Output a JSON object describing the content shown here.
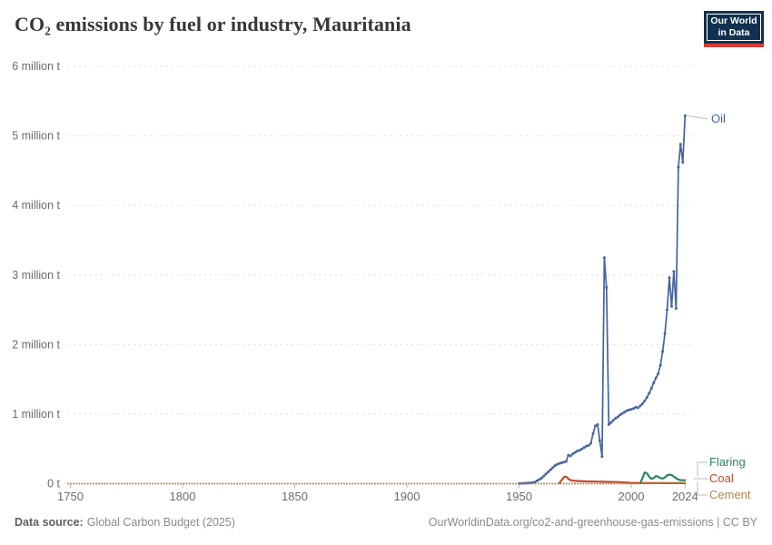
{
  "header": {
    "title": "CO₂ emissions by fuel or industry, Mauritania"
  },
  "logo": {
    "line1": "Our World",
    "line2": "in Data",
    "bg_color": "#12304F",
    "stripe_color": "#DB3A34"
  },
  "footer": {
    "source_label": "Data source:",
    "source_value": "Global Carbon Budget (2025)",
    "credit": "OurWorldinData.org/co2-and-greenhouse-gas-emissions | CC BY"
  },
  "chart_data": {
    "type": "line",
    "title": "CO₂ emissions by fuel or industry, Mauritania",
    "unit": "tonnes of CO₂",
    "xlim": [
      1749,
      2028
    ],
    "ylim": [
      0,
      6000000
    ],
    "grid": "horizontal-dashed",
    "legend_position": "right-edge-labels",
    "y_ticks": [
      {
        "value": 0,
        "label": "0 t"
      },
      {
        "value": 1,
        "label": "1 million t"
      },
      {
        "value": 2,
        "label": "2 million t"
      },
      {
        "value": 3,
        "label": "3 million t"
      },
      {
        "value": 4,
        "label": "4 million t"
      },
      {
        "value": 5,
        "label": "5 million t"
      },
      {
        "value": 6,
        "label": "6 million t"
      }
    ],
    "x_ticks": [
      {
        "value": 1750,
        "label": "1750"
      },
      {
        "value": 1800,
        "label": "1800"
      },
      {
        "value": 1850,
        "label": "1850"
      },
      {
        "value": 1900,
        "label": "1900"
      },
      {
        "value": 1950,
        "label": "1950"
      },
      {
        "value": 2000,
        "label": "2000"
      },
      {
        "value": 2024,
        "label": "2024"
      }
    ],
    "series": [
      {
        "name": "Oil",
        "color": "#44639E",
        "style": "solid",
        "markers": true,
        "points_unit": "million t",
        "points": [
          [
            1950,
            0.003
          ],
          [
            1951,
            0.004
          ],
          [
            1952,
            0.005
          ],
          [
            1953,
            0.007
          ],
          [
            1954,
            0.009
          ],
          [
            1955,
            0.012
          ],
          [
            1956,
            0.016
          ],
          [
            1957,
            0.022
          ],
          [
            1958,
            0.04
          ],
          [
            1959,
            0.06
          ],
          [
            1960,
            0.08
          ],
          [
            1961,
            0.11
          ],
          [
            1962,
            0.14
          ],
          [
            1963,
            0.17
          ],
          [
            1964,
            0.2
          ],
          [
            1965,
            0.23
          ],
          [
            1966,
            0.26
          ],
          [
            1967,
            0.28
          ],
          [
            1968,
            0.29
          ],
          [
            1969,
            0.3
          ],
          [
            1970,
            0.31
          ],
          [
            1971,
            0.32
          ],
          [
            1972,
            0.41
          ],
          [
            1973,
            0.4
          ],
          [
            1974,
            0.43
          ],
          [
            1975,
            0.45
          ],
          [
            1976,
            0.47
          ],
          [
            1977,
            0.48
          ],
          [
            1978,
            0.5
          ],
          [
            1979,
            0.52
          ],
          [
            1980,
            0.54
          ],
          [
            1981,
            0.55
          ],
          [
            1982,
            0.58
          ],
          [
            1983,
            0.72
          ],
          [
            1984,
            0.83
          ],
          [
            1985,
            0.85
          ],
          [
            1986,
            0.62
          ],
          [
            1987,
            0.39
          ],
          [
            1988,
            3.25
          ],
          [
            1989,
            2.82
          ],
          [
            1990,
            0.85
          ],
          [
            1991,
            0.88
          ],
          [
            1992,
            0.91
          ],
          [
            1993,
            0.94
          ],
          [
            1994,
            0.96
          ],
          [
            1995,
            0.99
          ],
          [
            1996,
            1.01
          ],
          [
            1997,
            1.03
          ],
          [
            1998,
            1.05
          ],
          [
            1999,
            1.06
          ],
          [
            2000,
            1.07
          ],
          [
            2001,
            1.08
          ],
          [
            2002,
            1.1
          ],
          [
            2003,
            1.09
          ],
          [
            2004,
            1.12
          ],
          [
            2005,
            1.15
          ],
          [
            2006,
            1.19
          ],
          [
            2007,
            1.24
          ],
          [
            2008,
            1.3
          ],
          [
            2009,
            1.37
          ],
          [
            2010,
            1.45
          ],
          [
            2011,
            1.52
          ],
          [
            2012,
            1.58
          ],
          [
            2013,
            1.7
          ],
          [
            2014,
            1.9
          ],
          [
            2015,
            2.16
          ],
          [
            2016,
            2.5
          ],
          [
            2017,
            2.96
          ],
          [
            2018,
            2.55
          ],
          [
            2019,
            3.05
          ],
          [
            2020,
            2.52
          ],
          [
            2021,
            4.55
          ],
          [
            2022,
            4.88
          ],
          [
            2023,
            4.62
          ],
          [
            2024,
            5.29
          ]
        ]
      },
      {
        "name": "Coal",
        "color": "#C4492A",
        "style": "solid",
        "markers": false,
        "points_unit": "million t",
        "points": [
          [
            1968,
            0.01
          ],
          [
            1969,
            0.05
          ],
          [
            1970,
            0.095
          ],
          [
            1971,
            0.1
          ],
          [
            1972,
            0.07
          ],
          [
            1973,
            0.05
          ],
          [
            1975,
            0.04
          ],
          [
            1980,
            0.032
          ],
          [
            1985,
            0.03
          ],
          [
            1990,
            0.026
          ],
          [
            1995,
            0.022
          ],
          [
            2000,
            0.012
          ],
          [
            2005,
            0.008
          ],
          [
            2010,
            0.008
          ],
          [
            2015,
            0.008
          ],
          [
            2020,
            0.008
          ],
          [
            2024,
            0.008
          ]
        ]
      },
      {
        "name": "Flaring",
        "color": "#2C8465",
        "style": "solid",
        "markers": false,
        "points_unit": "million t",
        "points": [
          [
            2004,
            0.005
          ],
          [
            2005,
            0.08
          ],
          [
            2006,
            0.16
          ],
          [
            2007,
            0.15
          ],
          [
            2008,
            0.1
          ],
          [
            2009,
            0.07
          ],
          [
            2010,
            0.08
          ],
          [
            2011,
            0.11
          ],
          [
            2012,
            0.1
          ],
          [
            2013,
            0.08
          ],
          [
            2014,
            0.075
          ],
          [
            2015,
            0.09
          ],
          [
            2016,
            0.12
          ],
          [
            2017,
            0.13
          ],
          [
            2018,
            0.125
          ],
          [
            2019,
            0.1
          ],
          [
            2020,
            0.08
          ],
          [
            2021,
            0.06
          ],
          [
            2022,
            0.05
          ],
          [
            2023,
            0.05
          ],
          [
            2024,
            0.05
          ]
        ]
      },
      {
        "name": "Cement",
        "color": "#B1854D",
        "style": "dotted",
        "markers": false,
        "points_unit": "million t",
        "points": [
          [
            1749,
            0
          ],
          [
            1800,
            0
          ],
          [
            1850,
            0
          ],
          [
            1900,
            0
          ],
          [
            1950,
            0
          ],
          [
            2000,
            0
          ],
          [
            2005,
            0.002
          ],
          [
            2010,
            0.005
          ],
          [
            2015,
            0.01
          ],
          [
            2020,
            0.012
          ],
          [
            2024,
            0.013
          ]
        ]
      }
    ]
  }
}
